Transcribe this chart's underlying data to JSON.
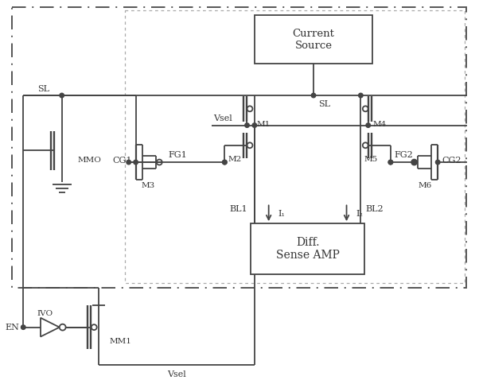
{
  "fig_width": 6.02,
  "fig_height": 4.78,
  "dpi": 100,
  "bg_color": "#ffffff",
  "lc": "#444444",
  "lw": 1.3,
  "labels": {
    "SL": "SL",
    "SL2": "SL",
    "Vsel": "Vsel",
    "Vsel2": "Vsel",
    "M1": "M1",
    "M2": "M2",
    "M3": "M3",
    "M4": "M4",
    "M5": "M5",
    "M6": "M6",
    "MMO": "MMO",
    "MM1": "MM1",
    "CG1": "CG1",
    "CG2": "CG2",
    "FG1": "FG1",
    "FG2": "FG2",
    "BL1": "BL1",
    "BL2": "BL2",
    "I1": "I₁",
    "I2": "I₂",
    "EN": "EN",
    "IVO": "IVO",
    "current_source": "Current\nSource",
    "diff_sense": "Diff.\nSense AMP"
  }
}
